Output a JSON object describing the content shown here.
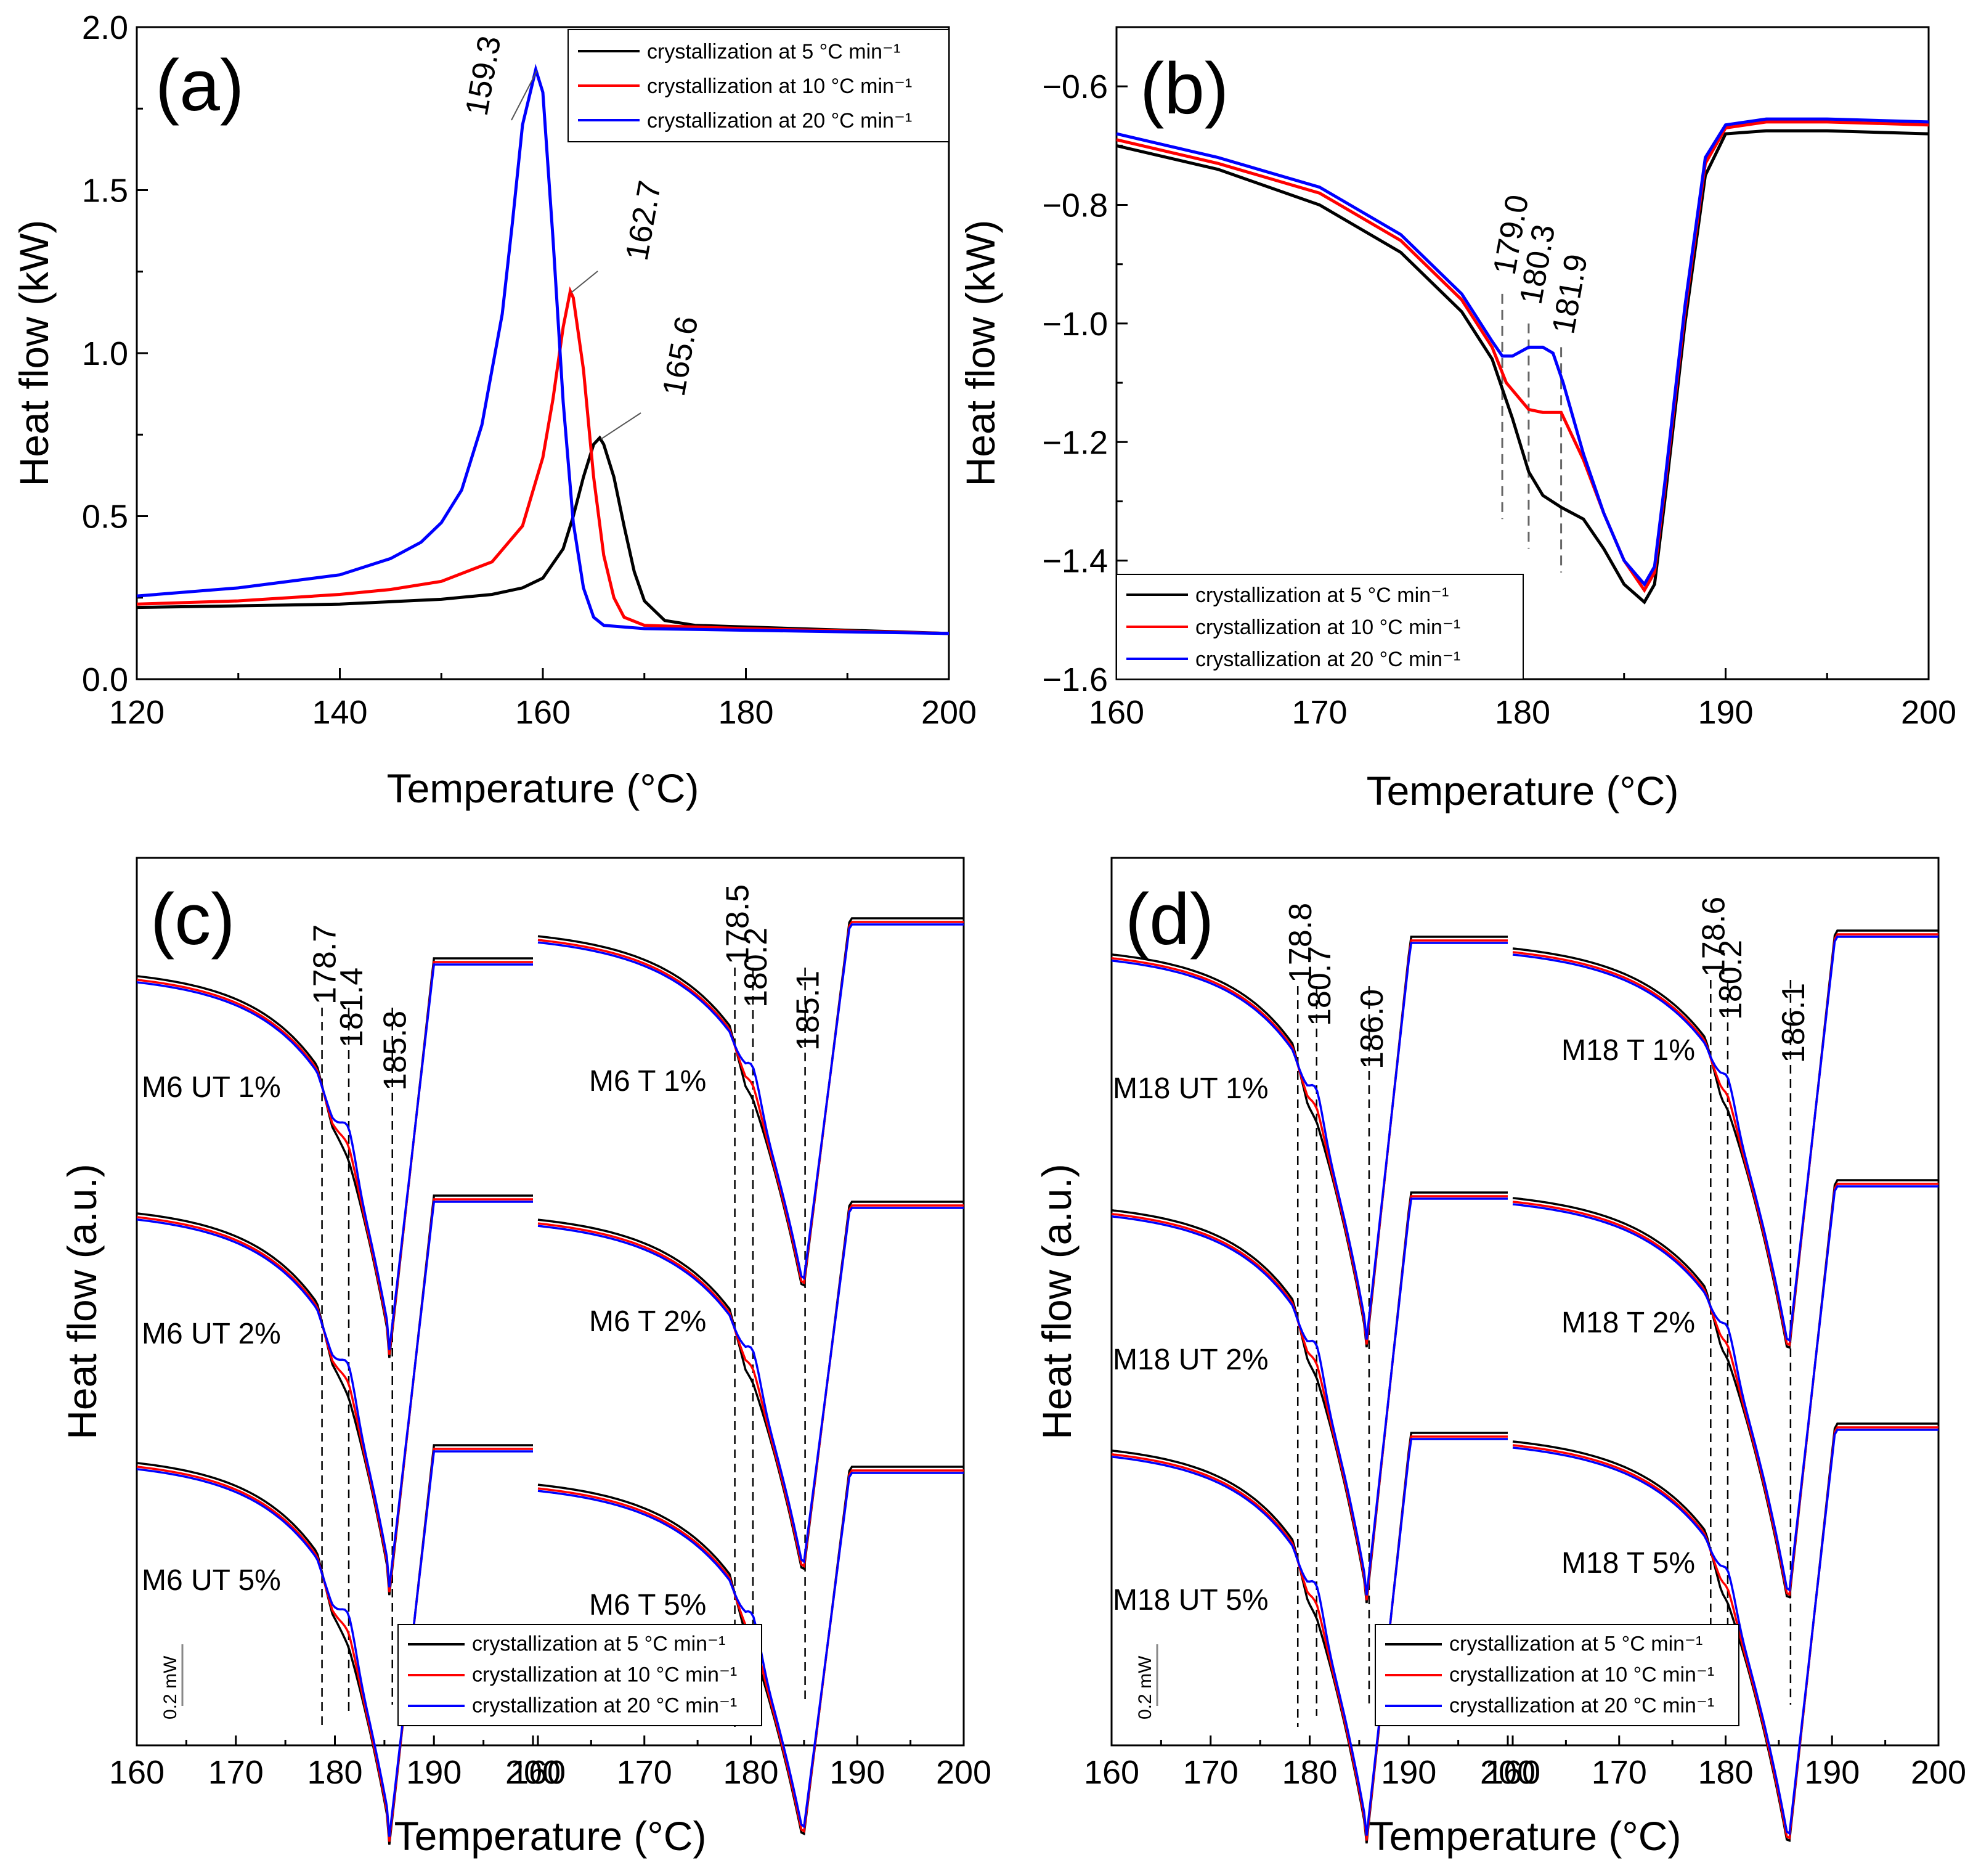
{
  "colors": {
    "rate5": "#000000",
    "rate10": "#ff0000",
    "rate20": "#0000ff",
    "guide": "#666666"
  },
  "legend": {
    "items": [
      {
        "key": "rate5",
        "label": "crystallization at 5 °C min⁻¹"
      },
      {
        "key": "rate10",
        "label": "crystallization at 10 °C min⁻¹"
      },
      {
        "key": "rate20",
        "label": "crystallization at 20 °C min⁻¹"
      }
    ]
  },
  "chart_data": [
    {
      "id": "a",
      "type": "line",
      "panel_label": "(a)",
      "xlabel": "Temperature (°C)",
      "ylabel": "Heat flow (kW)",
      "xlim": [
        120,
        200
      ],
      "ylim": [
        0,
        2.0
      ],
      "xticks": [
        "120",
        "140",
        "160",
        "180",
        "200"
      ],
      "yticks": [
        "0.0",
        "0.5",
        "1.0",
        "1.5",
        "2.0"
      ],
      "legend_position": "top-right",
      "series": [
        {
          "name": "crystallization at 5 °C min⁻¹",
          "color_key": "rate5",
          "x": [
            120,
            130,
            140,
            150,
            155,
            158,
            160,
            162,
            163,
            164,
            165,
            165.6,
            166,
            167,
            168,
            169,
            170,
            172,
            175,
            180,
            190,
            200
          ],
          "y": [
            0.22,
            0.225,
            0.23,
            0.245,
            0.26,
            0.28,
            0.31,
            0.4,
            0.5,
            0.62,
            0.72,
            0.74,
            0.72,
            0.62,
            0.47,
            0.33,
            0.24,
            0.18,
            0.165,
            0.16,
            0.15,
            0.14
          ]
        },
        {
          "name": "crystallization at 10 °C min⁻¹",
          "color_key": "rate10",
          "x": [
            120,
            130,
            140,
            145,
            150,
            155,
            158,
            160,
            161,
            162,
            162.7,
            163,
            164,
            165,
            166,
            167,
            168,
            170,
            175,
            180,
            200
          ],
          "y": [
            0.23,
            0.24,
            0.26,
            0.275,
            0.3,
            0.36,
            0.47,
            0.68,
            0.86,
            1.08,
            1.19,
            1.17,
            0.95,
            0.62,
            0.38,
            0.25,
            0.19,
            0.165,
            0.16,
            0.155,
            0.14
          ]
        },
        {
          "name": "crystallization at 20 °C min⁻¹",
          "color_key": "rate20",
          "x": [
            120,
            130,
            140,
            145,
            148,
            150,
            152,
            154,
            156,
            157,
            158,
            159.3,
            160,
            161,
            162,
            163,
            164,
            165,
            166,
            168,
            170,
            180,
            200
          ],
          "y": [
            0.255,
            0.28,
            0.32,
            0.37,
            0.42,
            0.48,
            0.58,
            0.78,
            1.12,
            1.4,
            1.7,
            1.87,
            1.8,
            1.35,
            0.85,
            0.48,
            0.28,
            0.19,
            0.165,
            0.16,
            0.155,
            0.15,
            0.14
          ]
        }
      ],
      "annotations": [
        {
          "text": "159.3",
          "x": 159.3,
          "y": 1.87,
          "color_key": "rate20"
        },
        {
          "text": "162.7",
          "x": 162.7,
          "y": 1.19,
          "color_key": "rate10"
        },
        {
          "text": "165.6",
          "x": 165.6,
          "y": 0.74,
          "color_key": "rate5"
        }
      ]
    },
    {
      "id": "b",
      "type": "line",
      "panel_label": "(b)",
      "xlabel": "Temperature (°C)",
      "ylabel": "Heat flow (kW)",
      "xlim": [
        160,
        200
      ],
      "ylim": [
        -1.6,
        -0.5
      ],
      "xticks": [
        "160",
        "170",
        "180",
        "190",
        "200"
      ],
      "yticks": [
        "−0.6",
        "−0.8",
        "−1.0",
        "−1.2",
        "−1.4",
        "−1.6"
      ],
      "legend_position": "bottom-left",
      "series": [
        {
          "name": "crystallization at 5 °C min⁻¹",
          "color_key": "rate5",
          "x": [
            160,
            165,
            170,
            174,
            177,
            178.5,
            179.5,
            180.3,
            181,
            181.9,
            183,
            184,
            185,
            186,
            186.5,
            187,
            188,
            189,
            190,
            192,
            195,
            200
          ],
          "y": [
            -0.7,
            -0.74,
            -0.8,
            -0.88,
            -0.98,
            -1.06,
            -1.16,
            -1.25,
            -1.29,
            -1.31,
            -1.33,
            -1.38,
            -1.44,
            -1.47,
            -1.44,
            -1.3,
            -1.0,
            -0.75,
            -0.68,
            -0.675,
            -0.675,
            -0.68
          ]
        },
        {
          "name": "crystallization at 10 °C min⁻¹",
          "color_key": "rate10",
          "x": [
            160,
            165,
            170,
            174,
            177,
            178.5,
            179.2,
            180.3,
            181,
            181.9,
            183,
            184,
            185,
            186,
            186.5,
            187,
            188,
            189,
            190,
            192,
            195,
            200
          ],
          "y": [
            -0.69,
            -0.73,
            -0.78,
            -0.86,
            -0.96,
            -1.04,
            -1.1,
            -1.145,
            -1.15,
            -1.15,
            -1.23,
            -1.32,
            -1.4,
            -1.45,
            -1.42,
            -1.28,
            -0.98,
            -0.73,
            -0.67,
            -0.66,
            -0.66,
            -0.665
          ]
        },
        {
          "name": "crystallization at 20 °C min⁻¹",
          "color_key": "rate20",
          "x": [
            160,
            165,
            170,
            174,
            177,
            178.5,
            179,
            179.5,
            180.3,
            181,
            181.5,
            182,
            183,
            184,
            185,
            186,
            186.5,
            187,
            188,
            189,
            190,
            192,
            195,
            200
          ],
          "y": [
            -0.68,
            -0.72,
            -0.77,
            -0.85,
            -0.95,
            -1.03,
            -1.055,
            -1.055,
            -1.04,
            -1.04,
            -1.05,
            -1.1,
            -1.22,
            -1.32,
            -1.4,
            -1.44,
            -1.41,
            -1.27,
            -0.97,
            -0.72,
            -0.665,
            -0.655,
            -0.655,
            -0.66
          ]
        }
      ],
      "guides": [
        {
          "x": 179.0,
          "y_top": -0.95,
          "y_bottom": -1.33
        },
        {
          "x": 180.3,
          "y_top": -1.0,
          "y_bottom": -1.38
        },
        {
          "x": 181.9,
          "y_top": -1.04,
          "y_bottom": -1.42
        }
      ],
      "annotations": [
        {
          "text": "179.0",
          "x": 179.0
        },
        {
          "text": "180.3",
          "x": 180.3
        },
        {
          "text": "181.9",
          "x": 181.9
        }
      ]
    },
    {
      "id": "c",
      "type": "line",
      "panel_label": "(c)",
      "xlabel": "Temperature (°C)",
      "ylabel": "Heat flow (a.u.)",
      "xticks": [
        "160",
        "170",
        "180",
        "190",
        "200",
        "160",
        "170",
        "180",
        "190",
        "200"
      ],
      "scale_bar": "0.2 mW",
      "legend_position": "bottom-center",
      "groups": [
        {
          "xlim": [
            160,
            200
          ],
          "markers": [
            "178.7",
            "181.4",
            "185.8"
          ],
          "samples": [
            "M6 UT 1%",
            "M6 UT 2%",
            "M6 UT 5%"
          ]
        },
        {
          "xlim": [
            160,
            200
          ],
          "markers": [
            "178.5",
            "180.2",
            "185.1"
          ],
          "samples": [
            "M6 T 1%",
            "M6 T 2%",
            "M6 T 5%"
          ]
        }
      ]
    },
    {
      "id": "d",
      "type": "line",
      "panel_label": "(d)",
      "xlabel": "Temperature (°C)",
      "ylabel": "Heat flow (a.u.)",
      "xticks": [
        "160",
        "170",
        "180",
        "190",
        "200",
        "160",
        "170",
        "180",
        "190",
        "200"
      ],
      "scale_bar": "0.2 mW",
      "legend_position": "bottom-center",
      "groups": [
        {
          "xlim": [
            160,
            200
          ],
          "markers": [
            "178.8",
            "180.7",
            "186.0"
          ],
          "samples": [
            "M18 UT 1%",
            "M18 UT 2%",
            "M18 UT 5%"
          ]
        },
        {
          "xlim": [
            160,
            200
          ],
          "markers": [
            "178.6",
            "180.2",
            "186.1"
          ],
          "samples": [
            "M18 T 1%",
            "M18 T 2%",
            "M18 T 5%"
          ]
        }
      ]
    }
  ]
}
